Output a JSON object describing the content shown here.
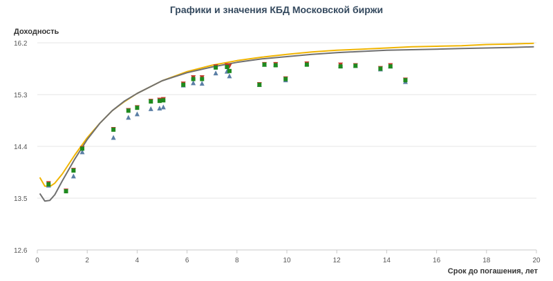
{
  "chart_data": {
    "type": "line",
    "title": "Графики и значения КБД Московской биржи",
    "ylabel": "Доходность",
    "xlabel": "Срок до погашения, лет",
    "xlim": [
      0,
      20
    ],
    "ylim": [
      12.6,
      16.2
    ],
    "xticks": [
      0,
      2,
      4,
      6,
      8,
      10,
      12,
      14,
      16,
      18,
      20
    ],
    "yticks": [
      12.6,
      13.5,
      14.4,
      15.3,
      16.2
    ],
    "grid": "horizontal",
    "series": [
      {
        "kind": "line",
        "color": "#f0b400",
        "x": [
          0.1,
          0.3,
          0.5,
          0.7,
          1.0,
          1.5,
          2.0,
          2.5,
          3.0,
          3.5,
          4.0,
          5.0,
          6.0,
          7.0,
          8.0,
          9.0,
          10,
          11,
          12,
          13,
          14,
          15,
          16,
          17,
          18,
          19,
          19.9
        ],
        "y": [
          13.86,
          13.71,
          13.7,
          13.76,
          13.92,
          14.25,
          14.55,
          14.8,
          15.02,
          15.18,
          15.32,
          15.54,
          15.7,
          15.81,
          15.89,
          15.95,
          16.0,
          16.04,
          16.07,
          16.09,
          16.11,
          16.13,
          16.14,
          16.15,
          16.17,
          16.18,
          16.19
        ]
      },
      {
        "kind": "line",
        "color": "#707070",
        "x": [
          0.1,
          0.3,
          0.5,
          0.7,
          1.0,
          1.5,
          2.0,
          2.5,
          3.0,
          3.5,
          4.0,
          5.0,
          6.0,
          7.0,
          8.0,
          9.0,
          10,
          11,
          12,
          13,
          14,
          15,
          16,
          17,
          18,
          19,
          19.9
        ],
        "y": [
          13.58,
          13.45,
          13.46,
          13.56,
          13.8,
          14.18,
          14.52,
          14.8,
          15.02,
          15.19,
          15.32,
          15.54,
          15.68,
          15.78,
          15.86,
          15.92,
          15.96,
          16.0,
          16.03,
          16.05,
          16.07,
          16.08,
          16.09,
          16.1,
          16.11,
          16.12,
          16.13
        ]
      },
      {
        "kind": "points",
        "marker": "triangle-up",
        "color": "#5b7fa6",
        "x": [
          0.45,
          1.45,
          1.8,
          3.05,
          3.65,
          4.0,
          4.55,
          4.9,
          5.05,
          5.85,
          6.25,
          6.6,
          7.15,
          7.6,
          7.7,
          8.9,
          9.1,
          9.55,
          9.95,
          10.8,
          12.15,
          12.75,
          13.75,
          14.15,
          14.75
        ],
        "y": [
          13.72,
          13.88,
          14.3,
          14.55,
          14.9,
          14.96,
          15.05,
          15.06,
          15.08,
          15.46,
          15.5,
          15.49,
          15.67,
          15.7,
          15.62,
          15.47,
          15.82,
          15.82,
          15.55,
          15.83,
          15.8,
          15.8,
          15.74,
          15.79,
          15.52
        ]
      },
      {
        "kind": "points",
        "marker": "triangle-down",
        "color": "#c0392b",
        "x": [
          0.45,
          1.15,
          1.45,
          1.8,
          3.05,
          3.65,
          4.0,
          4.55,
          4.9,
          5.05,
          5.85,
          6.25,
          6.6,
          7.15,
          7.6,
          7.7,
          8.9,
          9.1,
          9.55,
          9.95,
          10.8,
          12.15,
          12.75,
          13.75,
          14.15,
          14.75
        ],
        "y": [
          13.76,
          13.63,
          13.99,
          14.37,
          14.7,
          15.03,
          15.08,
          15.19,
          15.21,
          15.22,
          15.49,
          15.6,
          15.6,
          15.79,
          15.81,
          15.8,
          15.48,
          15.83,
          15.83,
          15.58,
          15.84,
          15.82,
          15.81,
          15.76,
          15.81,
          15.56
        ]
      },
      {
        "kind": "points",
        "marker": "square",
        "color": "#1f8a1f",
        "x": [
          0.45,
          1.15,
          1.45,
          1.8,
          3.05,
          3.65,
          4.0,
          4.55,
          4.9,
          5.05,
          5.85,
          6.25,
          6.6,
          7.15,
          7.6,
          7.7,
          8.9,
          9.1,
          9.55,
          9.95,
          10.8,
          12.15,
          12.75,
          13.75,
          14.15,
          14.75
        ],
        "y": [
          13.74,
          13.62,
          13.98,
          14.36,
          14.69,
          15.02,
          15.07,
          15.18,
          15.19,
          15.2,
          15.47,
          15.57,
          15.57,
          15.77,
          15.78,
          15.71,
          15.47,
          15.82,
          15.81,
          15.57,
          15.82,
          15.79,
          15.8,
          15.75,
          15.79,
          15.55
        ]
      }
    ]
  }
}
